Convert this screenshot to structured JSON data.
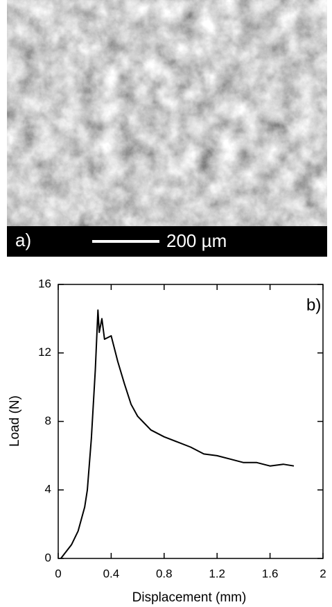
{
  "panel_a": {
    "label": "a)",
    "scale_bar": "200 µm"
  },
  "chart_data": {
    "type": "line",
    "annotation": "b)",
    "x_label": "Displacement (mm)",
    "y_label": "Load (N)",
    "x": [
      0.02,
      0.05,
      0.1,
      0.15,
      0.2,
      0.22,
      0.25,
      0.28,
      0.3,
      0.31,
      0.33,
      0.35,
      0.4,
      0.45,
      0.5,
      0.55,
      0.6,
      0.65,
      0.7,
      0.8,
      0.9,
      1.0,
      1.1,
      1.2,
      1.3,
      1.4,
      1.5,
      1.6,
      1.7,
      1.78
    ],
    "values": [
      0,
      0.3,
      0.8,
      1.6,
      3,
      4,
      7,
      11,
      14.5,
      13.2,
      14,
      12.8,
      13,
      11.5,
      10.2,
      9,
      8.3,
      7.9,
      7.5,
      7.1,
      6.8,
      6.5,
      6.1,
      6,
      5.8,
      5.6,
      5.6,
      5.4,
      5.5,
      5.4
    ],
    "color": "#000000",
    "xlim": [
      0,
      2
    ],
    "xticks": [
      0,
      0.4,
      0.8,
      1.2,
      1.6,
      2
    ],
    "ylim": [
      0,
      16
    ],
    "yticks": [
      0,
      4,
      8,
      12,
      16
    ]
  }
}
